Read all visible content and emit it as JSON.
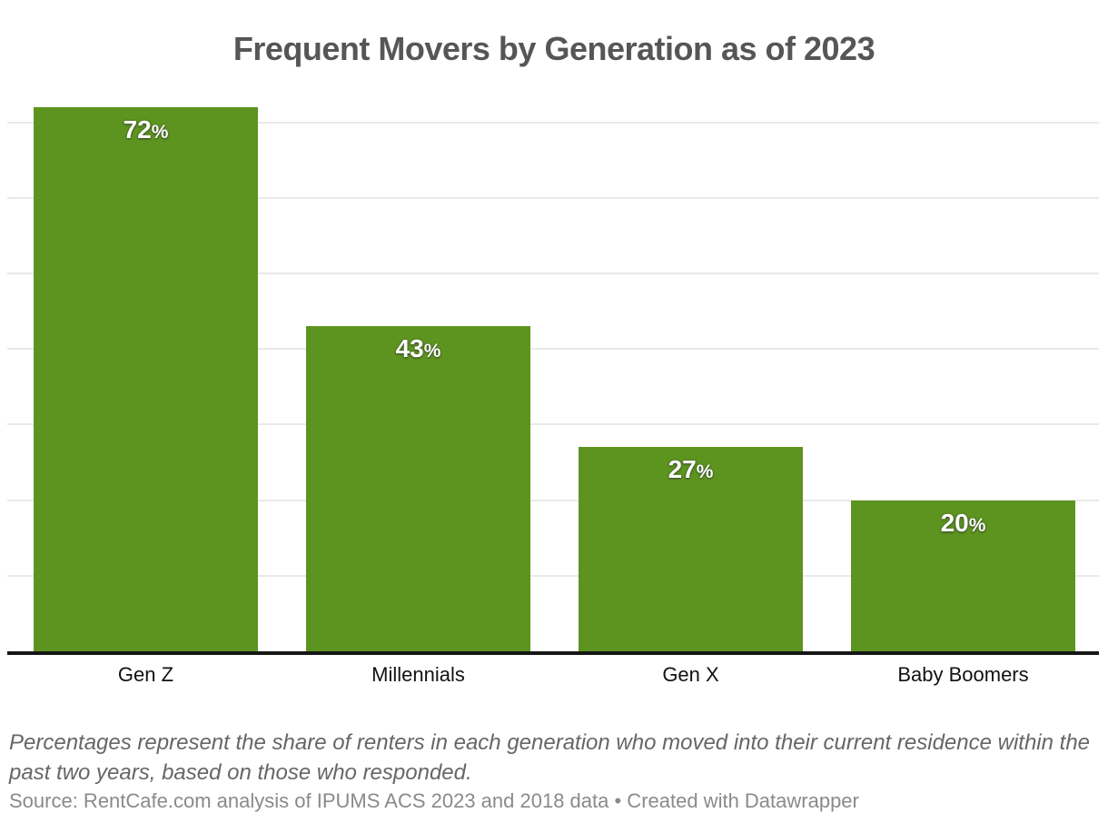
{
  "title": "Frequent Movers by Generation as of 2023",
  "note": "Percentages represent the share of renters in each generation who moved into their current residence within the past two years, based on those who responded.",
  "source": "Source: RentCafe.com analysis of IPUMS ACS 2023 and 2018 data • Created with Datawrapper",
  "colors": {
    "bar": "#5d9420",
    "value_label": "#ffffff",
    "gridline": "#e9e9e9",
    "axis_line": "#161616",
    "title_text": "#565659",
    "note_text": "#666666",
    "source_text": "#8a8a8a",
    "category_text": "#121212"
  },
  "chart_data": {
    "type": "bar",
    "title": "Frequent Movers by Generation as of 2023",
    "categories": [
      "Gen Z",
      "Millennials",
      "Gen X",
      "Baby Boomers"
    ],
    "values": [
      72,
      43,
      27,
      20
    ],
    "value_labels": [
      "72%",
      "43%",
      "27%",
      "20%"
    ],
    "unit": "%",
    "xlabel": "",
    "ylabel": "",
    "ylim": [
      0,
      75
    ],
    "grid": {
      "visible": true,
      "interval": 10,
      "max": 70,
      "y_tick_labels_shown": false
    },
    "legend": {
      "shown": false
    },
    "annotations": []
  }
}
